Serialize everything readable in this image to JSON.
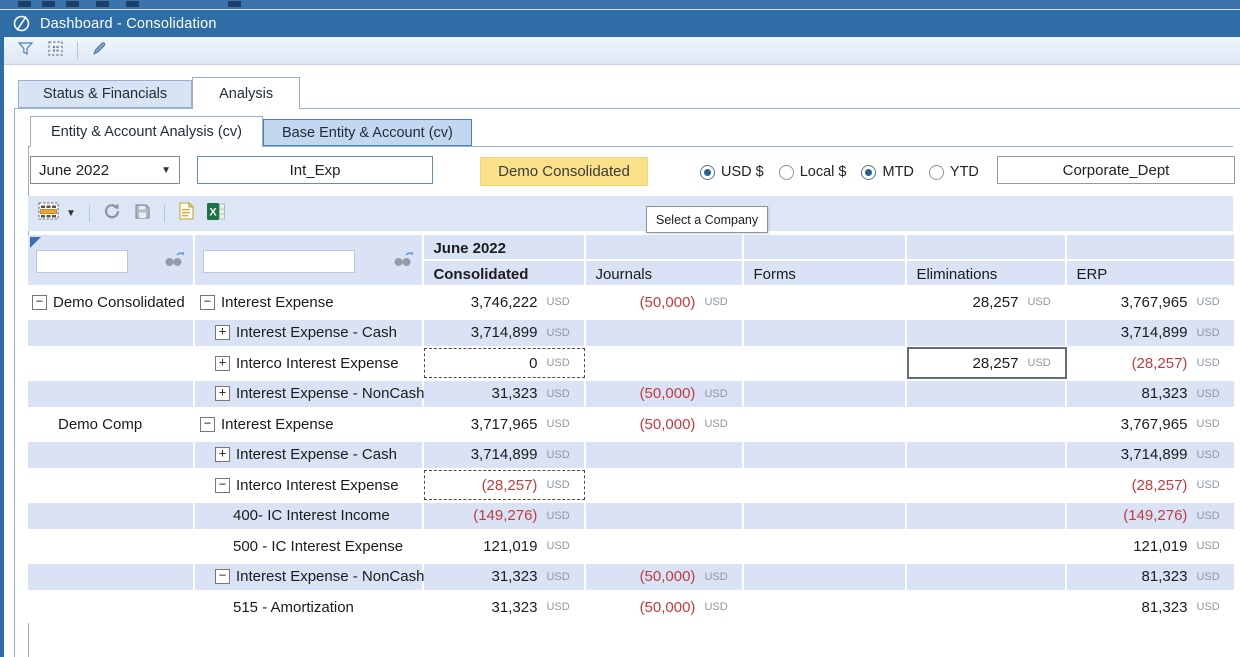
{
  "window": {
    "title": "Dashboard - Consolidation"
  },
  "colors": {
    "titlebar": "#2e6da6",
    "highlight_button": "#fbe28a",
    "row_alternate": "#d9e3f5",
    "negative_number": "#c23b3f",
    "radio_selected": "#2e5f93"
  },
  "icons": {
    "logo": "onestream-circle-slash",
    "toolbar": [
      "filter-funnel-icon",
      "dashed-selection-icon",
      "pencil-edit-icon"
    ],
    "grid_toolbar": [
      "grid-view-icon",
      "refresh-icon",
      "save-icon",
      "document-icon",
      "excel-export-icon"
    ],
    "header_filter": "binoculars-search-icon"
  },
  "tabs": [
    {
      "label": "Status & Financials",
      "active": false
    },
    {
      "label": "Analysis",
      "active": true
    }
  ],
  "subtabs": [
    {
      "label": "Entity & Account Analysis (cv)",
      "active": true
    },
    {
      "label": "Base Entity & Account (cv)",
      "active": false
    }
  ],
  "controls": {
    "period": "June 2022",
    "account_filter": "Int_Exp",
    "company_button": "Demo Consolidated",
    "cube_view": "Corporate_Dept",
    "radios": [
      {
        "label": "USD $",
        "selected": true
      },
      {
        "label": "Local $",
        "selected": false
      },
      {
        "label": "MTD",
        "selected": true
      },
      {
        "label": "YTD",
        "selected": false
      }
    ]
  },
  "tooltip": "Select a Company",
  "grid": {
    "month": "June 2022",
    "columns": [
      "Consolidated",
      "Journals",
      "Forms",
      "Eliminations",
      "ERP"
    ],
    "currency_suffix": "USD",
    "rows": [
      {
        "entity": "Demo Consolidated",
        "entity_icon": "minus",
        "entity_level": 0,
        "account": "Interest Expense",
        "account_icon": "minus",
        "account_level": 0,
        "values": {
          "consolidated": "3,746,222",
          "journals": "(50,000)",
          "forms": null,
          "eliminations": "28,257",
          "erp": "3,767,965"
        },
        "sel": []
      },
      {
        "entity": null,
        "account": "Interest Expense - Cash",
        "account_icon": "plus",
        "account_level": 1,
        "values": {
          "consolidated": "3,714,899",
          "journals": null,
          "forms": null,
          "eliminations": null,
          "erp": "3,714,899"
        },
        "sel": []
      },
      {
        "entity": null,
        "account": "Interco Interest Expense",
        "account_icon": "plus",
        "account_level": 1,
        "values": {
          "consolidated": "0",
          "journals": null,
          "forms": null,
          "eliminations": "28,257",
          "erp": "(28,257)"
        },
        "sel": [
          {
            "col": "consolidated",
            "type": "dashed"
          },
          {
            "col": "eliminations",
            "type": "solid"
          }
        ]
      },
      {
        "entity": null,
        "account": "Interest Expense - NonCash",
        "account_icon": "plus",
        "account_level": 1,
        "values": {
          "consolidated": "31,323",
          "journals": "(50,000)",
          "forms": null,
          "eliminations": null,
          "erp": "81,323"
        },
        "sel": []
      },
      {
        "entity": "Demo Comp",
        "entity_icon": null,
        "entity_level": 1,
        "account": "Interest Expense",
        "account_icon": "minus",
        "account_level": 0,
        "values": {
          "consolidated": "3,717,965",
          "journals": "(50,000)",
          "forms": null,
          "eliminations": null,
          "erp": "3,767,965"
        },
        "sel": []
      },
      {
        "entity": null,
        "account": "Interest Expense - Cash",
        "account_icon": "plus",
        "account_level": 1,
        "values": {
          "consolidated": "3,714,899",
          "journals": null,
          "forms": null,
          "eliminations": null,
          "erp": "3,714,899"
        },
        "sel": []
      },
      {
        "entity": null,
        "account": "Interco Interest Expense",
        "account_icon": "minus",
        "account_level": 1,
        "values": {
          "consolidated": "(28,257)",
          "journals": null,
          "forms": null,
          "eliminations": null,
          "erp": "(28,257)"
        },
        "sel": [
          {
            "col": "consolidated",
            "type": "dashed"
          }
        ]
      },
      {
        "entity": null,
        "account": "400- IC Interest Income",
        "account_icon": null,
        "account_level": 2,
        "values": {
          "consolidated": "(149,276)",
          "journals": null,
          "forms": null,
          "eliminations": null,
          "erp": "(149,276)"
        },
        "sel": []
      },
      {
        "entity": null,
        "account": "500 - IC Interest Expense",
        "account_icon": null,
        "account_level": 2,
        "values": {
          "consolidated": "121,019",
          "journals": null,
          "forms": null,
          "eliminations": null,
          "erp": "121,019"
        },
        "sel": []
      },
      {
        "entity": null,
        "account": "Interest Expense - NonCash",
        "account_icon": "minus",
        "account_level": 1,
        "values": {
          "consolidated": "31,323",
          "journals": "(50,000)",
          "forms": null,
          "eliminations": null,
          "erp": "81,323"
        },
        "sel": []
      },
      {
        "entity": null,
        "account": "515 - Amortization",
        "account_icon": null,
        "account_level": 2,
        "values": {
          "consolidated": "31,323",
          "journals": "(50,000)",
          "forms": null,
          "eliminations": null,
          "erp": "81,323"
        },
        "sel": []
      }
    ]
  }
}
